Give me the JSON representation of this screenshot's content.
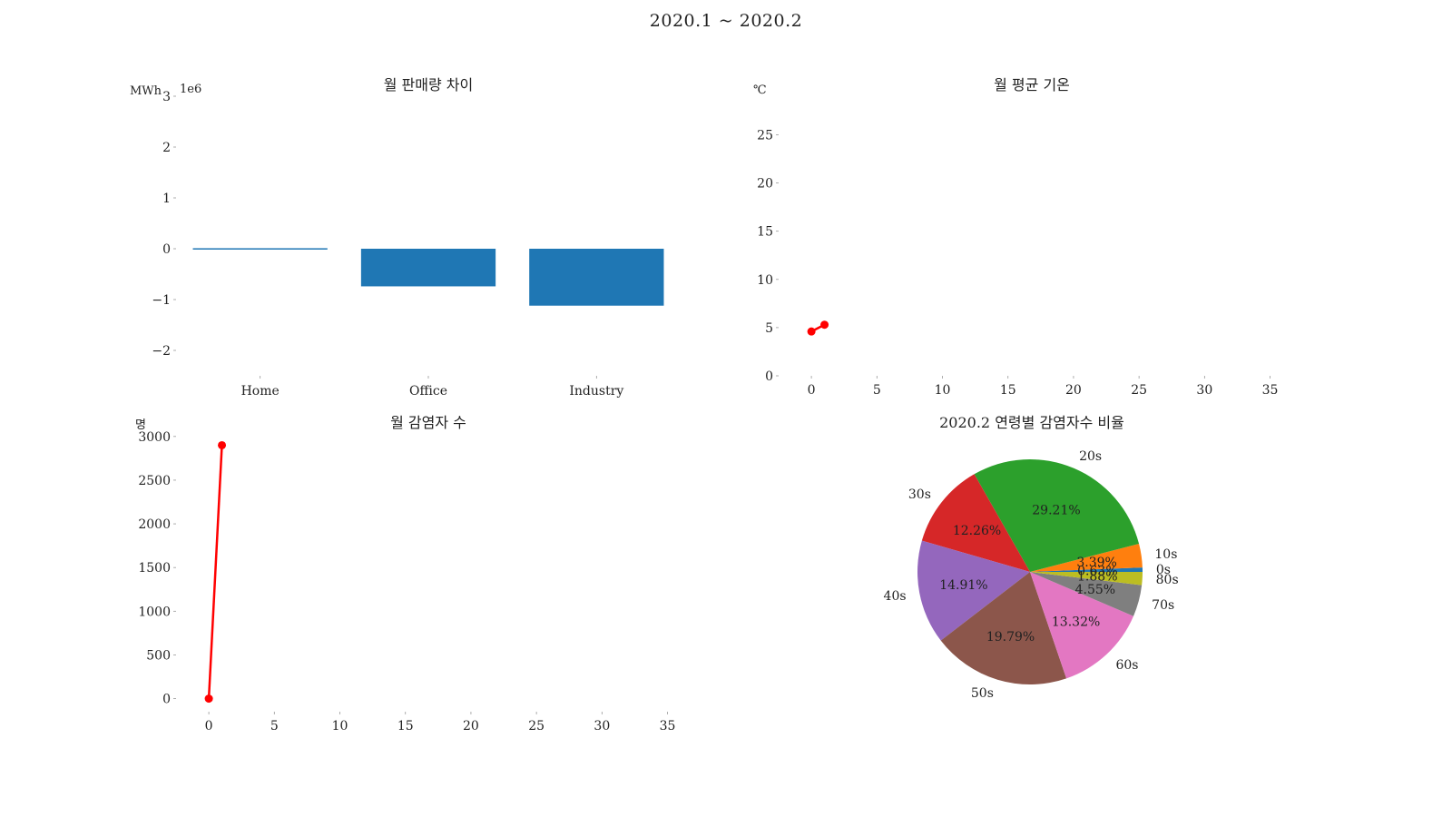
{
  "suptitle": "2020.1 ~ 2020.2",
  "chart_data": [
    {
      "type": "bar",
      "title": "월 판매량 차이",
      "ylabel": "MWh",
      "offset_label": "1e6",
      "categories": [
        "Home",
        "Office",
        "Industry"
      ],
      "values": [
        0.01,
        -0.74,
        -1.12
      ],
      "ylim": [
        -2.5,
        3
      ],
      "yticks": [
        -2,
        -1,
        0,
        1,
        2,
        3
      ],
      "tick_labels": [
        "−2",
        "−1",
        "0",
        "1",
        "2",
        "3"
      ],
      "color": "#1f77b4"
    },
    {
      "type": "line",
      "title": "월 평균 기온",
      "ylabel": "℃",
      "x": [
        0,
        1
      ],
      "y": [
        4.6,
        5.3
      ],
      "xlim": [
        -2.5,
        36
      ],
      "ylim": [
        0,
        29
      ],
      "xticks": [
        0,
        5,
        10,
        15,
        20,
        25,
        30,
        35
      ],
      "yticks": [
        0,
        5,
        10,
        15,
        20,
        25
      ],
      "color": "#ff0000"
    },
    {
      "type": "line",
      "title": "월 감염자 수",
      "ylabel": "명",
      "x": [
        0,
        1
      ],
      "y": [
        0,
        2900
      ],
      "xlim": [
        -2.5,
        36
      ],
      "ylim": [
        -150,
        3050
      ],
      "xticks": [
        0,
        5,
        10,
        15,
        20,
        25,
        30,
        35
      ],
      "yticks": [
        0,
        500,
        1000,
        1500,
        2000,
        2500,
        3000
      ],
      "color": "#ff0000"
    },
    {
      "type": "pie",
      "title": "2020.2 연령별 감염자수 비율",
      "slices": [
        {
          "label": "0s",
          "pct": 0.63,
          "pct_label": "0.63%",
          "color": "#1f77b4"
        },
        {
          "label": "10s",
          "pct": 3.39,
          "pct_label": "3.39%",
          "color": "#ff7f0e"
        },
        {
          "label": "20s",
          "pct": 29.21,
          "pct_label": "29.21%",
          "color": "#2ca02c"
        },
        {
          "label": "30s",
          "pct": 12.26,
          "pct_label": "12.26%",
          "color": "#d62728"
        },
        {
          "label": "40s",
          "pct": 14.91,
          "pct_label": "14.91%",
          "color": "#9467bd"
        },
        {
          "label": "50s",
          "pct": 19.79,
          "pct_label": "19.79%",
          "color": "#8c564b"
        },
        {
          "label": "60s",
          "pct": 13.32,
          "pct_label": "13.32%",
          "color": "#e377c2"
        },
        {
          "label": "70s",
          "pct": 4.55,
          "pct_label": "4.55%",
          "color": "#7f7f7f"
        },
        {
          "label": "80s",
          "pct": 1.88,
          "pct_label": "1.88%",
          "color": "#bcbd22"
        }
      ]
    }
  ]
}
